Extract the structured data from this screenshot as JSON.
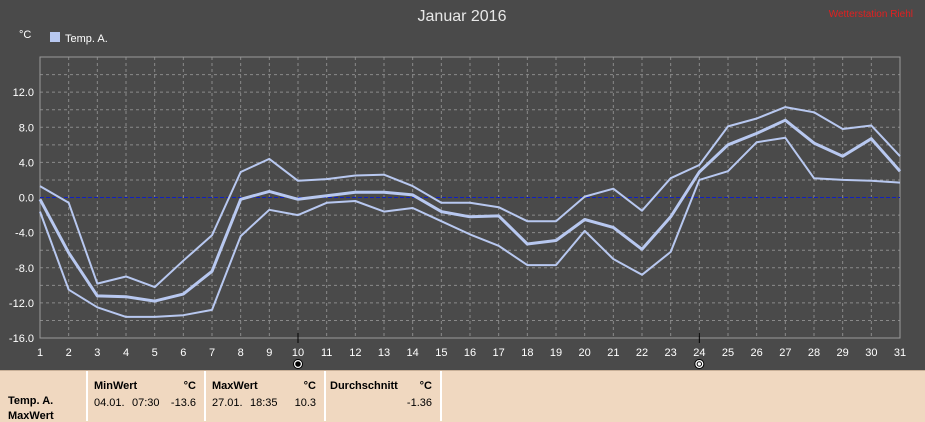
{
  "header": {
    "title": "Januar 2016",
    "credit": "Wetterstation Riehl"
  },
  "legend": {
    "entries": [
      {
        "label": "Temp. A.",
        "color": "#b8c8f0"
      }
    ]
  },
  "colors": {
    "background": "#4a4a4a",
    "line": "#b8c8f0",
    "zero_line": "#1020c0",
    "grid": "#8a8a8a",
    "axis_text": "#ffffff"
  },
  "markers": [
    {
      "day": 10,
      "icon": "new-moon-icon"
    },
    {
      "day": 24,
      "icon": "full-moon-icon"
    }
  ],
  "chart_data": {
    "type": "line",
    "title": "Januar 2016",
    "ylabel": "°C",
    "xlim": [
      1,
      31
    ],
    "ylim": [
      -16,
      16
    ],
    "x_ticks": [
      1,
      2,
      3,
      4,
      5,
      6,
      7,
      8,
      9,
      10,
      11,
      12,
      13,
      14,
      15,
      16,
      17,
      18,
      19,
      20,
      21,
      22,
      23,
      24,
      25,
      26,
      27,
      28,
      29,
      30,
      31
    ],
    "y_ticks": [
      -16,
      -12,
      -8,
      -4,
      0,
      4,
      8,
      12
    ],
    "y_tick_labels": [
      "-16.0",
      "-12.0",
      "-8.0",
      "-4.0",
      "0.0",
      "4.0",
      "8.0",
      "12.0"
    ],
    "grid": true,
    "legend_position": "top-left",
    "x": [
      1,
      2,
      3,
      4,
      5,
      6,
      7,
      8,
      9,
      10,
      11,
      12,
      13,
      14,
      15,
      16,
      17,
      18,
      19,
      20,
      21,
      22,
      23,
      24,
      25,
      26,
      27,
      28,
      29,
      30,
      31
    ],
    "series": [
      {
        "name": "Temp. A.",
        "role": "max",
        "values": [
          1.3,
          -0.6,
          -9.8,
          -9.0,
          -10.2,
          -7.2,
          -4.3,
          2.9,
          4.4,
          1.9,
          2.1,
          2.5,
          2.6,
          1.3,
          -0.6,
          -0.6,
          -1.1,
          -2.7,
          -2.7,
          0.1,
          1.0,
          -1.5,
          2.2,
          3.7,
          8.1,
          9.0,
          10.3,
          9.7,
          7.8,
          8.2,
          4.7
        ]
      },
      {
        "name": "Temp. A.",
        "role": "mean",
        "values": [
          -0.2,
          -6.3,
          -11.2,
          -11.3,
          -11.8,
          -11.0,
          -8.4,
          -0.2,
          0.7,
          -0.2,
          0.2,
          0.6,
          0.6,
          0.3,
          -1.6,
          -2.2,
          -2.1,
          -5.3,
          -4.9,
          -2.5,
          -3.4,
          -5.9,
          -2.2,
          2.9,
          6.0,
          7.3,
          8.8,
          6.2,
          4.7,
          6.7,
          3.0
        ]
      },
      {
        "name": "Temp. A.",
        "role": "min",
        "values": [
          -1.6,
          -10.5,
          -12.5,
          -13.6,
          -13.6,
          -13.4,
          -12.8,
          -4.4,
          -1.4,
          -2.0,
          -0.6,
          -0.4,
          -1.6,
          -1.2,
          -2.7,
          -4.2,
          -5.5,
          -7.7,
          -7.7,
          -3.8,
          -7.0,
          -8.8,
          -6.2,
          2.0,
          3.0,
          6.3,
          6.8,
          2.2,
          2.0,
          1.9,
          1.7
        ]
      }
    ]
  },
  "stats": {
    "row_labels": [
      "Temp. A.",
      "MaxWert"
    ],
    "min": {
      "header": "MinWert",
      "unit": "°C",
      "date": "04.01.",
      "time": "07:30",
      "value": "-13.6"
    },
    "max": {
      "header": "MaxWert",
      "unit": "°C",
      "date": "27.01.",
      "time": "18:35",
      "value": "10.3"
    },
    "avg": {
      "header": "Durchschnitt",
      "unit": "°C",
      "value": "-1.36"
    }
  }
}
